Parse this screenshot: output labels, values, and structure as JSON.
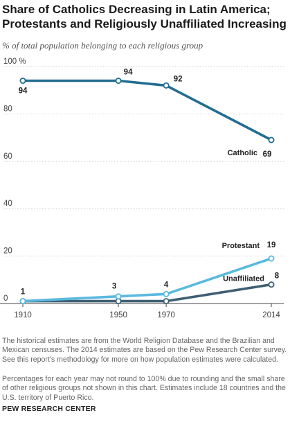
{
  "header": {
    "title": "Share of Catholics Decreasing in Latin America; Protestants and Religiously Unaffiliated Increasing",
    "subtitle": "% of total population belonging to each religious group"
  },
  "chart_data": {
    "type": "line",
    "x": [
      1910,
      1950,
      1970,
      2014
    ],
    "x_tick_labels": [
      "1910",
      "1950",
      "1970",
      "2014"
    ],
    "ylim": [
      0,
      100
    ],
    "y_ticks": [
      0,
      20,
      40,
      60,
      80,
      100
    ],
    "y_tick_labels": [
      "0",
      "20",
      "40",
      "60",
      "80",
      "100 %"
    ],
    "grid": true,
    "series": [
      {
        "name": "Catholic",
        "values": [
          94,
          94,
          92,
          69
        ],
        "labels": [
          "94",
          "94",
          "92",
          "69"
        ],
        "color": "#236d92"
      },
      {
        "name": "Protestant",
        "values": [
          1,
          3,
          4,
          19
        ],
        "labels": [
          "1",
          "3",
          "4",
          "19"
        ],
        "color": "#5ab9df"
      },
      {
        "name": "Unaffiliated",
        "values": [
          1,
          1,
          1,
          8
        ],
        "labels": [
          "",
          "",
          "",
          "8"
        ],
        "color": "#3f5f73"
      }
    ]
  },
  "notes": {
    "note1": "The historical estimates are from the World Religion Database and the Brazilian and Mexican censuses. The 2014 estimates are based on the Pew Research Center survey. See this report's methodology for more on how population estimates were calculated.",
    "note2": "Percentages for each year may not round to 100% due to rounding and the small share of other religious groups not shown in this chart. Estimates include 18 countries and the U.S. territory of Puerto Rico."
  },
  "source": "PEW RESEARCH CENTER"
}
